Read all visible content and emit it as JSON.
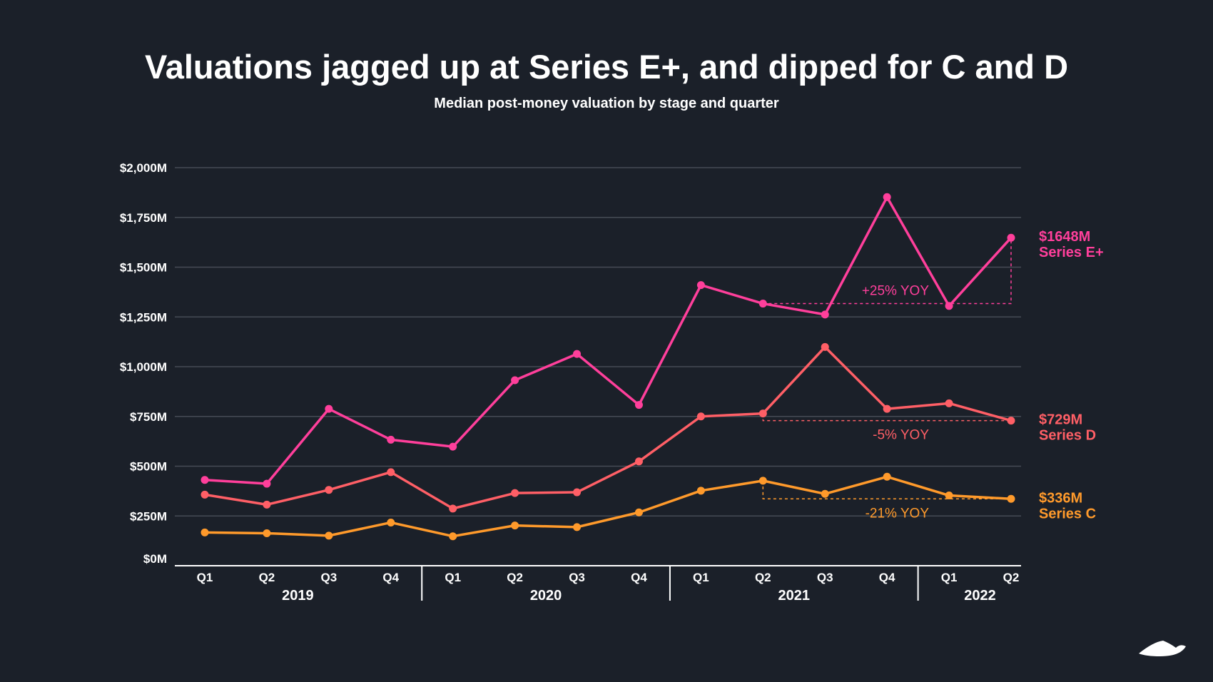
{
  "chart_data": {
    "type": "line",
    "title": "Valuations jagged up at Series E+, and dipped for C and D",
    "subtitle": "Median post-money valuation by stage and quarter",
    "xlabel": "",
    "ylabel": "",
    "ylim": [
      0,
      2000
    ],
    "y_ticks": [
      0,
      250,
      500,
      750,
      1000,
      1250,
      1500,
      1750,
      2000
    ],
    "y_tick_labels": [
      "$0M",
      "$250M",
      "$500M",
      "$750M",
      "$1,000M",
      "$1,250M",
      "$1,500M",
      "$1,750M",
      "$2,000M"
    ],
    "grid": true,
    "categories": [
      "Q1",
      "Q2",
      "Q3",
      "Q4",
      "Q1",
      "Q2",
      "Q3",
      "Q4",
      "Q1",
      "Q2",
      "Q3",
      "Q4",
      "Q1",
      "Q2"
    ],
    "years": [
      {
        "label": "2019",
        "quarters": 4
      },
      {
        "label": "2020",
        "quarters": 4
      },
      {
        "label": "2021",
        "quarters": 4
      },
      {
        "label": "2022",
        "quarters": 2
      }
    ],
    "series": [
      {
        "name": "Series E+",
        "color": "#ff3f9b",
        "end_label": "$1648M",
        "values": [
          431,
          412,
          788,
          633,
          598,
          932,
          1064,
          808,
          1410,
          1317,
          1262,
          1852,
          1305,
          1648
        ],
        "yoy": {
          "label": "+25% YOY",
          "from_index": 9,
          "to_index": 13
        }
      },
      {
        "name": "Series D",
        "color": "#ff5f66",
        "end_label": "$729M",
        "values": [
          357,
          307,
          381,
          470,
          287,
          365,
          369,
          524,
          750,
          765,
          1099,
          788,
          816,
          729
        ],
        "yoy": {
          "label": "-5% YOY",
          "from_index": 9,
          "to_index": 13
        }
      },
      {
        "name": "Series C",
        "color": "#ff9a2b",
        "end_label": "$336M",
        "values": [
          167,
          163,
          151,
          217,
          148,
          202,
          194,
          268,
          377,
          427,
          361,
          447,
          353,
          336
        ],
        "yoy": {
          "label": "-21% YOY",
          "from_index": 9,
          "to_index": 13
        }
      }
    ]
  },
  "logo": "mountain-logo"
}
